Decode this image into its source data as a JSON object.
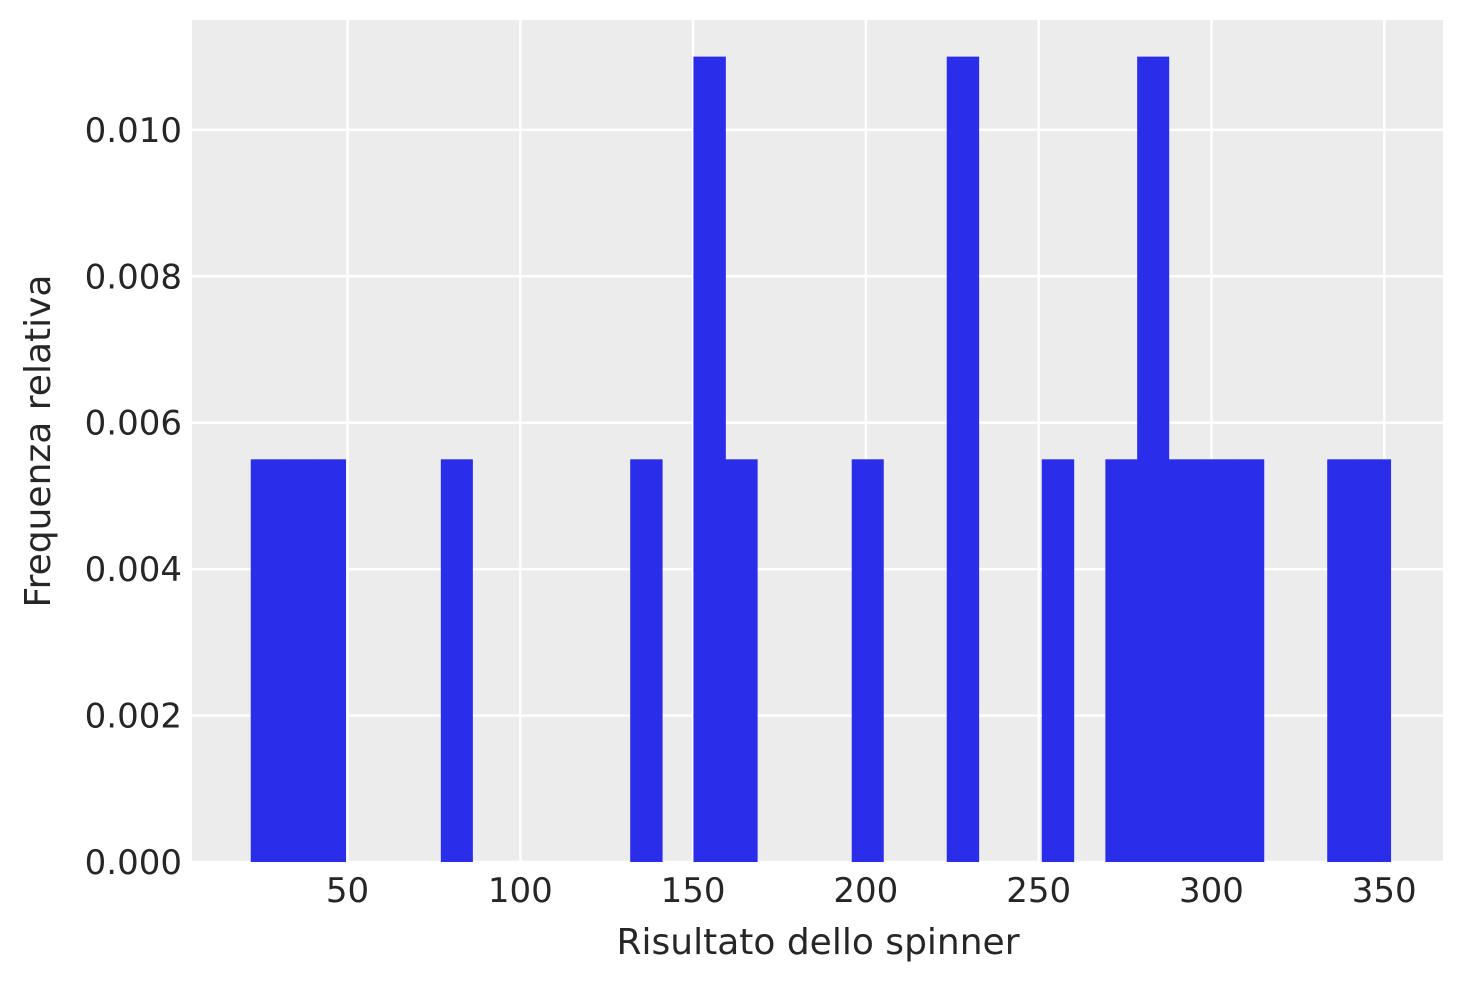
{
  "chart_data": {
    "type": "bar",
    "subtype": "histogram",
    "title": "",
    "xlabel": "Risultato dello spinner",
    "ylabel": "Frequenza relativa",
    "xlim": [
      5,
      367
    ],
    "ylim": [
      0,
      0.0115
    ],
    "xticks": [
      50,
      100,
      150,
      200,
      250,
      300,
      350
    ],
    "xtick_labels": [
      "50",
      "100",
      "150",
      "200",
      "250",
      "300",
      "350"
    ],
    "yticks": [
      0,
      0.002,
      0.004,
      0.006,
      0.008,
      0.01
    ],
    "ytick_labels": [
      "0.000",
      "0.002",
      "0.004",
      "0.006",
      "0.008",
      "0.010"
    ],
    "grid": true,
    "background_color": "#ececec",
    "grid_color": "#ffffff",
    "bar_color": "#2a2ee8",
    "bins": [
      {
        "x0": 22.0,
        "x1": 31.1,
        "value": 0.0055
      },
      {
        "x0": 31.1,
        "x1": 40.3,
        "value": 0.0055
      },
      {
        "x0": 40.3,
        "x1": 49.4,
        "value": 0.0055
      },
      {
        "x0": 77.0,
        "x1": 86.1,
        "value": 0.0055
      },
      {
        "x0": 131.8,
        "x1": 141.0,
        "value": 0.0055
      },
      {
        "x0": 150.1,
        "x1": 159.3,
        "value": 0.011
      },
      {
        "x0": 159.3,
        "x1": 168.5,
        "value": 0.0055
      },
      {
        "x0": 195.9,
        "x1": 205.0,
        "value": 0.0055
      },
      {
        "x0": 223.4,
        "x1": 232.6,
        "value": 0.011
      },
      {
        "x0": 250.9,
        "x1": 260.1,
        "value": 0.0055
      },
      {
        "x0": 269.3,
        "x1": 278.5,
        "value": 0.0055
      },
      {
        "x0": 278.5,
        "x1": 287.6,
        "value": 0.011
      },
      {
        "x0": 287.6,
        "x1": 296.8,
        "value": 0.0055
      },
      {
        "x0": 296.8,
        "x1": 306.0,
        "value": 0.0055
      },
      {
        "x0": 306.0,
        "x1": 315.1,
        "value": 0.0055
      },
      {
        "x0": 333.5,
        "x1": 342.7,
        "value": 0.0055
      },
      {
        "x0": 342.7,
        "x1": 351.8,
        "value": 0.0055
      }
    ]
  }
}
